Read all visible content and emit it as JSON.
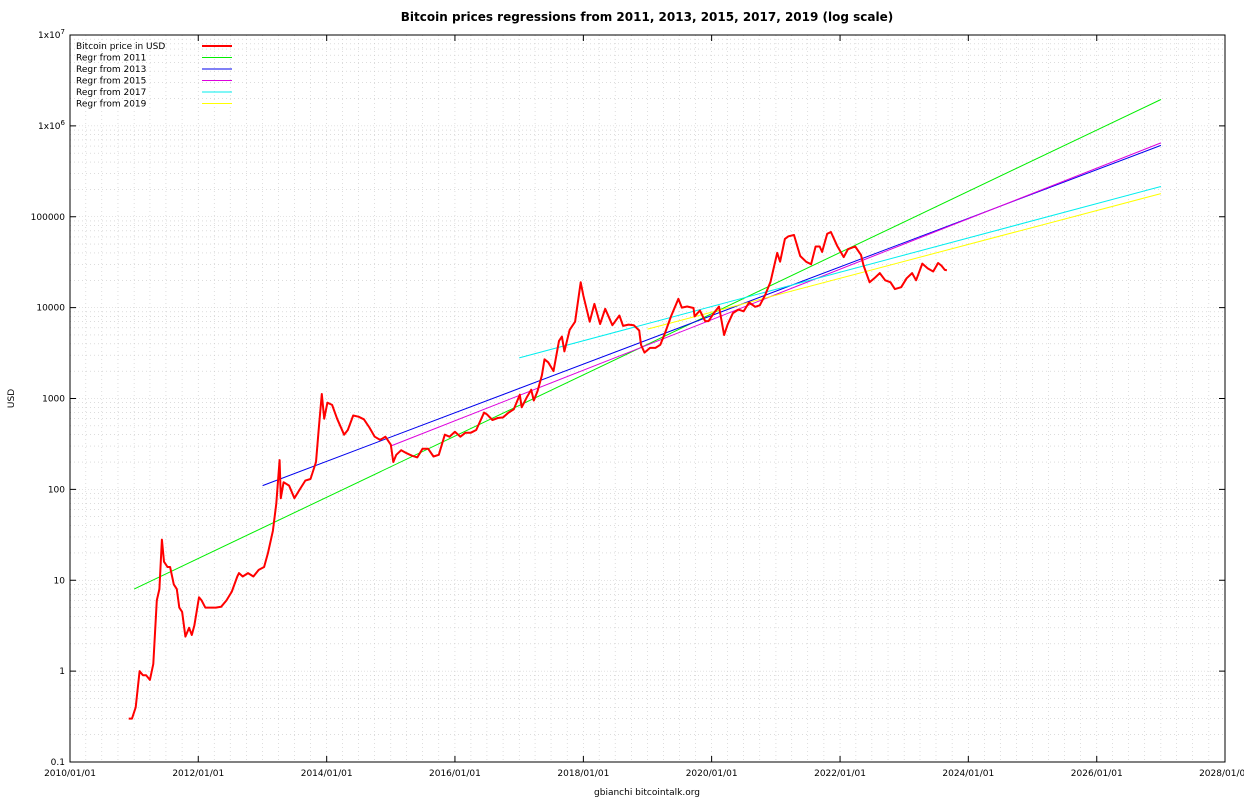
{
  "chart_data": {
    "type": "line",
    "title": "Bitcoin prices regressions from 2011, 2013, 2015, 2017, 2019 (log scale)",
    "xlabel": "gbianchi bitcointalk.org",
    "ylabel": "USD",
    "y_scale": "log",
    "ylim": [
      0.1,
      10000000
    ],
    "xlim": [
      "2010/01/01",
      "2028/01/01"
    ],
    "x_ticks": [
      "2010/01/01",
      "2012/01/01",
      "2014/01/01",
      "2016/01/01",
      "2018/01/01",
      "2020/01/01",
      "2022/01/01",
      "2024/01/01",
      "2026/01/01",
      "2028/01/01"
    ],
    "y_ticks": [
      {
        "value": 0.1,
        "label": "0.1"
      },
      {
        "value": 1,
        "label": "1"
      },
      {
        "value": 10,
        "label": "10"
      },
      {
        "value": 100,
        "label": "100"
      },
      {
        "value": 1000,
        "label": "1000"
      },
      {
        "value": 10000,
        "label": "10000"
      },
      {
        "value": 100000,
        "label": "100000"
      },
      {
        "value": 1000000,
        "label": "1x10",
        "exp": "6"
      },
      {
        "value": 10000000,
        "label": "1x10",
        "exp": "7"
      }
    ],
    "grid": true,
    "legend_position": "top-left",
    "series": [
      {
        "name": "Bitcoin price in USD",
        "color": "#ff0000",
        "width": 2,
        "points": [
          [
            "2010/12/01",
            0.3
          ],
          [
            "2010/12/20",
            0.3
          ],
          [
            "2011/01/10",
            0.4
          ],
          [
            "2011/02/01",
            1.0
          ],
          [
            "2011/02/20",
            0.9
          ],
          [
            "2011/03/10",
            0.9
          ],
          [
            "2011/04/01",
            0.8
          ],
          [
            "2011/04/20",
            1.2
          ],
          [
            "2011/05/10",
            6
          ],
          [
            "2011/05/25",
            8
          ],
          [
            "2011/06/08",
            28
          ],
          [
            "2011/06/20",
            16
          ],
          [
            "2011/07/10",
            14
          ],
          [
            "2011/07/25",
            14
          ],
          [
            "2011/08/15",
            9
          ],
          [
            "2011/09/01",
            8
          ],
          [
            "2011/09/15",
            5
          ],
          [
            "2011/10/01",
            4.5
          ],
          [
            "2011/10/20",
            2.4
          ],
          [
            "2011/11/10",
            3.0
          ],
          [
            "2011/11/25",
            2.5
          ],
          [
            "2011/12/10",
            3.2
          ],
          [
            "2012/01/05",
            6.5
          ],
          [
            "2012/01/20",
            6.0
          ],
          [
            "2012/02/10",
            5.0
          ],
          [
            "2012/03/10",
            5.0
          ],
          [
            "2012/04/10",
            5.0
          ],
          [
            "2012/05/10",
            5.1
          ],
          [
            "2012/06/10",
            6.0
          ],
          [
            "2012/07/10",
            7.5
          ],
          [
            "2012/08/10",
            11
          ],
          [
            "2012/08/20",
            12
          ],
          [
            "2012/09/10",
            11
          ],
          [
            "2012/10/10",
            12
          ],
          [
            "2012/11/10",
            11
          ],
          [
            "2012/12/10",
            13
          ],
          [
            "2013/01/10",
            14
          ],
          [
            "2013/02/01",
            20
          ],
          [
            "2013/03/01",
            35
          ],
          [
            "2013/03/20",
            70
          ],
          [
            "2013/04/08",
            210
          ],
          [
            "2013/04/15",
            80
          ],
          [
            "2013/05/01",
            120
          ],
          [
            "2013/06/01",
            110
          ],
          [
            "2013/07/01",
            80
          ],
          [
            "2013/08/01",
            100
          ],
          [
            "2013/09/01",
            125
          ],
          [
            "2013/10/01",
            130
          ],
          [
            "2013/11/01",
            200
          ],
          [
            "2013/11/18",
            500
          ],
          [
            "2013/12/04",
            1120
          ],
          [
            "2013/12/18",
            600
          ],
          [
            "2014/01/05",
            900
          ],
          [
            "2014/02/01",
            850
          ],
          [
            "2014/03/01",
            600
          ],
          [
            "2014/04/10",
            400
          ],
          [
            "2014/05/01",
            450
          ],
          [
            "2014/06/01",
            650
          ],
          [
            "2014/07/01",
            630
          ],
          [
            "2014/08/01",
            590
          ],
          [
            "2014/09/01",
            480
          ],
          [
            "2014/10/01",
            380
          ],
          [
            "2014/11/01",
            350
          ],
          [
            "2014/12/01",
            380
          ],
          [
            "2015/01/01",
            310
          ],
          [
            "2015/01/15",
            200
          ],
          [
            "2015/02/01",
            240
          ],
          [
            "2015/03/01",
            270
          ],
          [
            "2015/04/01",
            250
          ],
          [
            "2015/05/01",
            235
          ],
          [
            "2015/06/01",
            225
          ],
          [
            "2015/07/01",
            280
          ],
          [
            "2015/08/01",
            280
          ],
          [
            "2015/09/01",
            230
          ],
          [
            "2015/10/01",
            240
          ],
          [
            "2015/11/04",
            400
          ],
          [
            "2015/12/01",
            380
          ],
          [
            "2016/01/01",
            430
          ],
          [
            "2016/02/01",
            380
          ],
          [
            "2016/03/01",
            420
          ],
          [
            "2016/04/01",
            420
          ],
          [
            "2016/05/01",
            450
          ],
          [
            "2016/06/15",
            700
          ],
          [
            "2016/07/01",
            670
          ],
          [
            "2016/08/01",
            580
          ],
          [
            "2016/09/01",
            610
          ],
          [
            "2016/10/01",
            620
          ],
          [
            "2016/11/01",
            700
          ],
          [
            "2016/12/01",
            760
          ],
          [
            "2017/01/04",
            1100
          ],
          [
            "2017/01/15",
            800
          ],
          [
            "2017/02/15",
            1050
          ],
          [
            "2017/03/10",
            1250
          ],
          [
            "2017/03/25",
            950
          ],
          [
            "2017/04/15",
            1200
          ],
          [
            "2017/05/10",
            1800
          ],
          [
            "2017/05/25",
            2700
          ],
          [
            "2017/06/15",
            2500
          ],
          [
            "2017/07/15",
            2000
          ],
          [
            "2017/08/15",
            4300
          ],
          [
            "2017/09/01",
            4800
          ],
          [
            "2017/09/15",
            3300
          ],
          [
            "2017/10/15",
            5700
          ],
          [
            "2017/11/15",
            7000
          ],
          [
            "2017/12/17",
            19000
          ],
          [
            "2018/01/01",
            13500
          ],
          [
            "2018/02/06",
            7000
          ],
          [
            "2018/03/05",
            11000
          ],
          [
            "2018/04/06",
            6600
          ],
          [
            "2018/05/05",
            9700
          ],
          [
            "2018/06/15",
            6400
          ],
          [
            "2018/07/25",
            8200
          ],
          [
            "2018/08/15",
            6300
          ],
          [
            "2018/09/15",
            6500
          ],
          [
            "2018/10/15",
            6400
          ],
          [
            "2018/11/15",
            5600
          ],
          [
            "2018/11/25",
            3900
          ],
          [
            "2018/12/15",
            3200
          ],
          [
            "2019/01/15",
            3600
          ],
          [
            "2019/02/15",
            3600
          ],
          [
            "2019/03/15",
            3900
          ],
          [
            "2019/04/10",
            5200
          ],
          [
            "2019/05/15",
            8000
          ],
          [
            "2019/06/26",
            12500
          ],
          [
            "2019/07/15",
            10000
          ],
          [
            "2019/08/15",
            10300
          ],
          [
            "2019/09/20",
            9900
          ],
          [
            "2019/09/26",
            8000
          ],
          [
            "2019/10/26",
            9300
          ],
          [
            "2019/11/25",
            7100
          ],
          [
            "2019/12/15",
            7100
          ],
          [
            "2020/01/15",
            8800
          ],
          [
            "2020/02/12",
            10300
          ],
          [
            "2020/03/12",
            5000
          ],
          [
            "2020/04/01",
            6500
          ],
          [
            "2020/05/01",
            8700
          ],
          [
            "2020/06/01",
            9500
          ],
          [
            "2020/07/01",
            9100
          ],
          [
            "2020/08/01",
            11400
          ],
          [
            "2020/09/05",
            10200
          ],
          [
            "2020/10/01",
            10600
          ],
          [
            "2020/11/01",
            13800
          ],
          [
            "2020/12/01",
            19200
          ],
          [
            "2021/01/08",
            40000
          ],
          [
            "2021/01/25",
            32000
          ],
          [
            "2021/02/21",
            57000
          ],
          [
            "2021/03/13",
            61000
          ],
          [
            "2021/04/14",
            63000
          ],
          [
            "2021/05/19",
            37000
          ],
          [
            "2021/06/22",
            32000
          ],
          [
            "2021/07/20",
            30000
          ],
          [
            "2021/08/15",
            47000
          ],
          [
            "2021/09/07",
            47000
          ],
          [
            "2021/09/21",
            41000
          ],
          [
            "2021/10/20",
            65000
          ],
          [
            "2021/11/10",
            68000
          ],
          [
            "2021/12/15",
            48000
          ],
          [
            "2022/01/22",
            36000
          ],
          [
            "2022/02/15",
            44000
          ],
          [
            "2022/03/28",
            47000
          ],
          [
            "2022/04/30",
            38000
          ],
          [
            "2022/05/15",
            29000
          ],
          [
            "2022/06/18",
            19000
          ],
          [
            "2022/07/15",
            21000
          ],
          [
            "2022/08/15",
            24000
          ],
          [
            "2022/09/15",
            20000
          ],
          [
            "2022/10/15",
            19000
          ],
          [
            "2022/11/09",
            16000
          ],
          [
            "2022/12/15",
            16800
          ],
          [
            "2023/01/15",
            21000
          ],
          [
            "2023/02/15",
            24000
          ],
          [
            "2023/03/10",
            20000
          ],
          [
            "2023/04/14",
            30500
          ],
          [
            "2023/05/15",
            27000
          ],
          [
            "2023/06/15",
            25000
          ],
          [
            "2023/07/13",
            31000
          ],
          [
            "2023/08/01",
            29000
          ],
          [
            "2023/08/20",
            26000
          ],
          [
            "2023/09/01",
            25800
          ]
        ]
      },
      {
        "name": "Regr from 2011",
        "color": "#00ee00",
        "width": 1,
        "points": [
          [
            "2011/01/01",
            8
          ],
          [
            "2027/01/01",
            1950000
          ]
        ]
      },
      {
        "name": "Regr from 2013",
        "color": "#0000ee",
        "width": 1,
        "points": [
          [
            "2013/01/01",
            110
          ],
          [
            "2027/01/01",
            610000
          ]
        ]
      },
      {
        "name": "Regr from 2015",
        "color": "#dd00dd",
        "width": 1,
        "points": [
          [
            "2015/01/01",
            300
          ],
          [
            "2027/01/01",
            650000
          ]
        ]
      },
      {
        "name": "Regr from 2017",
        "color": "#00eeee",
        "width": 1,
        "points": [
          [
            "2017/01/01",
            2800
          ],
          [
            "2027/01/01",
            215000
          ]
        ]
      },
      {
        "name": "Regr from 2019",
        "color": "#ffff00",
        "width": 1,
        "points": [
          [
            "2019/01/01",
            5800
          ],
          [
            "2027/01/01",
            180000
          ]
        ]
      }
    ]
  }
}
